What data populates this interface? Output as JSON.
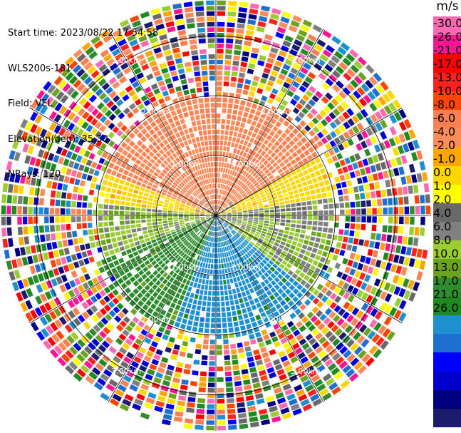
{
  "header": {
    "start_time": "Start time: 2023/08/22 17:54:58",
    "instrument": "WLS200s-181",
    "field": "Field: VEL",
    "elevation": "Elevation(deg): 35.30",
    "nrays": "NRays: 120"
  },
  "colorbar": {
    "unit": "m/s",
    "boundaries": [
      -30.0,
      -26.0,
      -21.0,
      -17.0,
      -13.0,
      -10.0,
      -8.0,
      -6.0,
      -4.0,
      -2.0,
      -1.0,
      0.0,
      1.0,
      2.0,
      4.0,
      6.0,
      8.0,
      10.0,
      13.0,
      17.0,
      21.0,
      26.0
    ],
    "tick_labels": [
      "-30.0",
      "-26.0",
      "-21.0",
      "-17.0",
      "-13.0",
      "-10.0",
      "-8.0",
      "-6.0",
      "-4.0",
      "-2.0",
      "-1.0",
      "0.0",
      "1.0",
      "2.0",
      "4.0",
      "6.0",
      "8.0",
      "10.0",
      "13.0",
      "17.0",
      "21.0",
      "26.0"
    ],
    "colors": [
      "#1c1c6e",
      "#000080",
      "#0000cd",
      "#0000ff",
      "#1e6fd0",
      "#1e90d0",
      "#1f8a1f",
      "#2e8b2e",
      "#6ba31f",
      "#9acd32",
      "#808080",
      "#696969",
      "#ffff00",
      "#ffd700",
      "#ffa500",
      "#ff8c5a",
      "#ff7f50",
      "#ff4500",
      "#ff2020",
      "#ff0000",
      "#ff1493",
      "#ff69b4"
    ]
  },
  "chart_data": {
    "type": "ppi",
    "field": "VEL",
    "units": "m/s",
    "nrays": 120,
    "elevation_deg": 35.3,
    "range_rings_km": [
      1.0,
      2.0,
      3.0
    ],
    "range_ring_labels": [
      "1.00km",
      "2.00km",
      "3.00km"
    ],
    "max_range_km": 3.6,
    "valid_range_km": 1.95,
    "azimuth_lines_deg": [
      0,
      30,
      60,
      90,
      120,
      150,
      180,
      210,
      240,
      270,
      300,
      330
    ],
    "velocity_sectors": [
      {
        "azimuth_from": 290,
        "azimuth_to": 345,
        "velocity": 8.0
      },
      {
        "azimuth_from": 345,
        "azimuth_to": 60,
        "velocity": 8.0
      },
      {
        "azimuth_from": 60,
        "azimuth_to": 80,
        "velocity": 3.0
      },
      {
        "azimuth_from": 80,
        "azimuth_to": 100,
        "velocity": -0.5
      },
      {
        "azimuth_from": 100,
        "azimuth_to": 130,
        "velocity": -1.5
      },
      {
        "azimuth_from": 130,
        "azimuth_to": 200,
        "velocity": -9.0
      },
      {
        "azimuth_from": 200,
        "azimuth_to": 250,
        "velocity": -5.0
      },
      {
        "azimuth_from": 250,
        "azimuth_to": 275,
        "velocity": -1.5
      },
      {
        "azimuth_from": 275,
        "azimuth_to": 290,
        "velocity": 3.0
      }
    ]
  }
}
